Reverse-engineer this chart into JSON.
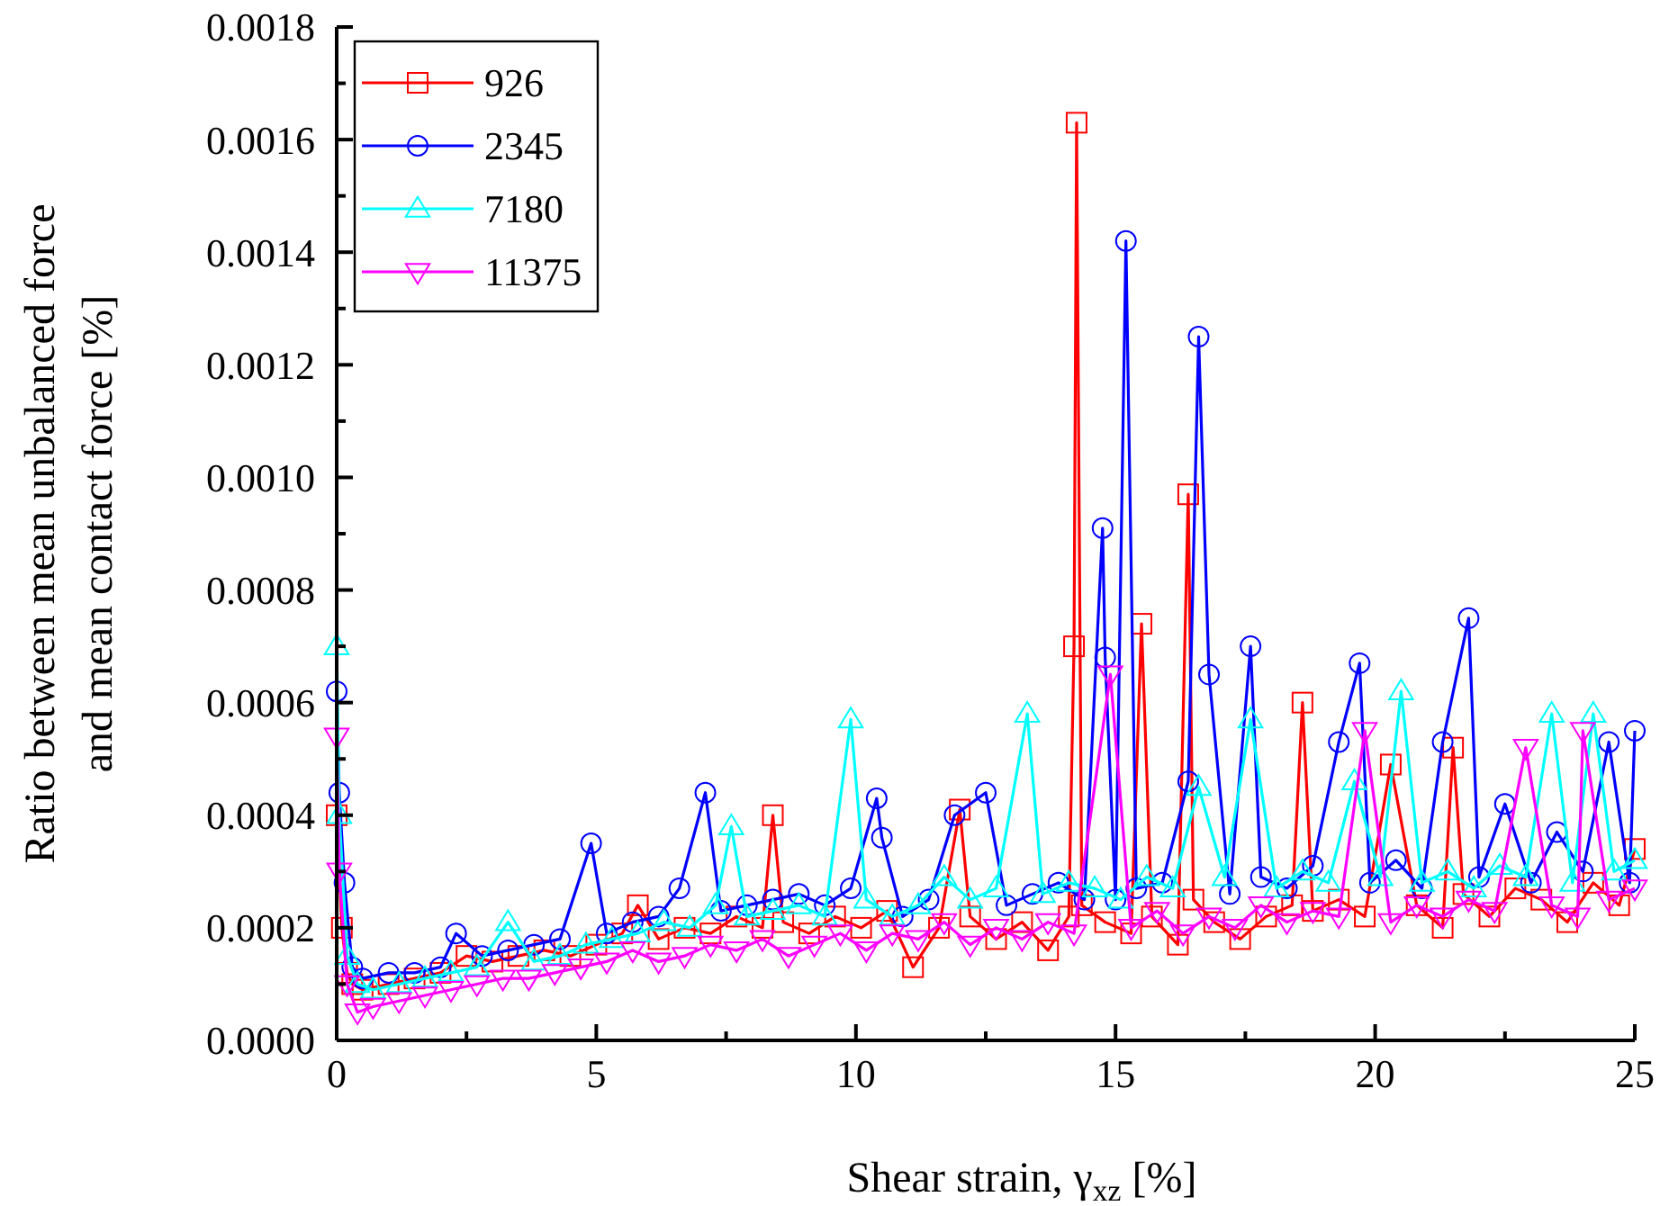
{
  "chart_data": {
    "type": "line",
    "xlabel": "Shear strain, γ$_{xz}$ [%]",
    "ylabel": "Ratio between mean unbalanced force\nand mean contact force [%]",
    "xlim": [
      0,
      25
    ],
    "ylim": [
      0,
      0.0018
    ],
    "xticks": [
      0,
      {
        "value": 2.5,
        "label": null
      },
      5,
      {
        "value": 7.5,
        "label": null
      },
      10,
      {
        "value": 12.5,
        "label": null
      },
      15,
      {
        "value": 17.5,
        "label": null
      },
      20,
      {
        "value": 22.5,
        "label": null
      },
      25
    ],
    "yticks": [
      {
        "value": 0,
        "label": "0.0000"
      },
      {
        "value": 0.0001,
        "label": null
      },
      {
        "value": 0.0002,
        "label": "0.0002"
      },
      {
        "value": 0.0003,
        "label": null
      },
      {
        "value": 0.0004,
        "label": "0.0004"
      },
      {
        "value": 0.0005,
        "label": null
      },
      {
        "value": 0.0006,
        "label": "0.0006"
      },
      {
        "value": 0.0007,
        "label": null
      },
      {
        "value": 0.0008,
        "label": "0.0008"
      },
      {
        "value": 0.0009,
        "label": null
      },
      {
        "value": 0.001,
        "label": "0.0010"
      },
      {
        "value": 0.0011,
        "label": null
      },
      {
        "value": 0.0012,
        "label": "0.0012"
      },
      {
        "value": 0.0013,
        "label": null
      },
      {
        "value": 0.0014,
        "label": "0.0014"
      },
      {
        "value": 0.0015,
        "label": null
      },
      {
        "value": 0.0016,
        "label": "0.0016"
      },
      {
        "value": 0.0017,
        "label": null
      },
      {
        "value": 0.0018,
        "label": "0.0018"
      }
    ],
    "grid": false,
    "legend": "top left",
    "line_style": "solid",
    "series": [
      {
        "name": "926",
        "color": "#ff0000",
        "marker": "square",
        "x": [
          0,
          0.1,
          0.2,
          0.3,
          0.5,
          1,
          1.5,
          2,
          2.5,
          3,
          3.5,
          4,
          4.5,
          5,
          5.5,
          5.8,
          6.2,
          6.7,
          7.2,
          7.7,
          8.2,
          8.4,
          8.6,
          9.1,
          9.6,
          10.1,
          10.6,
          11.1,
          11.6,
          12.0,
          12.2,
          12.7,
          13.2,
          13.7,
          14.1,
          14.2,
          14.25,
          14.35,
          14.8,
          15.3,
          15.5,
          15.7,
          16.2,
          16.4,
          16.5,
          16.9,
          17.4,
          17.9,
          18.4,
          18.6,
          18.8,
          19.3,
          19.8,
          20.3,
          20.8,
          21.3,
          21.5,
          21.7,
          22.2,
          22.7,
          23.2,
          23.7,
          24.2,
          24.7,
          25
        ],
        "values": [
          0.0004,
          0.0002,
          0.00012,
          0.0001,
          9e-05,
          0.0001,
          0.00011,
          0.00012,
          0.00015,
          0.00014,
          0.00015,
          0.00016,
          0.00015,
          0.00017,
          0.00019,
          0.00024,
          0.00018,
          0.0002,
          0.00019,
          0.00022,
          0.0002,
          0.0004,
          0.00021,
          0.00019,
          0.00022,
          0.0002,
          0.00023,
          0.00013,
          0.0002,
          0.00041,
          0.00022,
          0.00018,
          0.00021,
          0.00016,
          0.00022,
          0.0007,
          0.00163,
          0.00024,
          0.00021,
          0.00019,
          0.00074,
          0.00022,
          0.00017,
          0.00097,
          0.00025,
          0.00021,
          0.00018,
          0.00022,
          0.00024,
          0.0006,
          0.00023,
          0.00025,
          0.00022,
          0.00049,
          0.00024,
          0.0002,
          0.00052,
          0.00026,
          0.00022,
          0.00027,
          0.00025,
          0.00021,
          0.00028,
          0.00024,
          0.00034
        ]
      },
      {
        "name": "2345",
        "color": "#0000ff",
        "marker": "circle",
        "x": [
          0,
          0.05,
          0.15,
          0.3,
          0.5,
          1,
          1.5,
          2,
          2.3,
          2.8,
          3.3,
          3.8,
          4.3,
          4.9,
          5.2,
          5.7,
          6.2,
          6.6,
          7.1,
          7.4,
          7.9,
          8.4,
          8.9,
          9.4,
          9.9,
          10.4,
          10.5,
          10.9,
          11.4,
          11.9,
          12.5,
          12.9,
          13.4,
          13.9,
          14.4,
          14.75,
          14.8,
          15.0,
          15.2,
          15.4,
          15.9,
          16.4,
          16.6,
          16.8,
          17.2,
          17.6,
          17.8,
          18.3,
          18.8,
          19.3,
          19.7,
          19.9,
          20.4,
          20.9,
          21.3,
          21.8,
          22.0,
          22.5,
          23.0,
          23.5,
          24.0,
          24.5,
          24.9,
          25
        ],
        "values": [
          0.00062,
          0.00044,
          0.00028,
          0.00013,
          0.00011,
          0.00012,
          0.00012,
          0.00013,
          0.00019,
          0.00015,
          0.00016,
          0.00017,
          0.00018,
          0.00035,
          0.00019,
          0.00021,
          0.00022,
          0.00027,
          0.00044,
          0.00023,
          0.00024,
          0.00025,
          0.00026,
          0.00024,
          0.00027,
          0.00043,
          0.00036,
          0.00022,
          0.00025,
          0.0004,
          0.00044,
          0.00024,
          0.00026,
          0.00028,
          0.00025,
          0.00091,
          0.00068,
          0.00025,
          0.00142,
          0.00027,
          0.00028,
          0.00046,
          0.00125,
          0.00065,
          0.00026,
          0.0007,
          0.00029,
          0.00027,
          0.00031,
          0.00053,
          0.00067,
          0.00028,
          0.00032,
          0.00027,
          0.00053,
          0.00075,
          0.00029,
          0.00042,
          0.00028,
          0.00037,
          0.0003,
          0.00053,
          0.00028,
          0.00055
        ]
      },
      {
        "name": "7180",
        "color": "#00ffff",
        "marker": "triangle",
        "x": [
          0,
          0.05,
          0.2,
          0.4,
          0.7,
          1.2,
          1.7,
          2.2,
          2.7,
          3.3,
          3.8,
          4.3,
          4.8,
          5.3,
          5.8,
          6.3,
          6.8,
          7.3,
          7.6,
          7.9,
          8.4,
          8.9,
          9.4,
          9.9,
          10.2,
          10.7,
          11.2,
          11.7,
          12.2,
          12.7,
          13.3,
          13.6,
          14.1,
          14.6,
          15.1,
          15.6,
          16.1,
          16.6,
          17.1,
          17.6,
          18.1,
          18.6,
          19.1,
          19.6,
          20.1,
          20.5,
          20.9,
          21.4,
          21.9,
          22.4,
          22.9,
          23.4,
          23.8,
          24.2,
          24.6,
          25
        ],
        "values": [
          0.0007,
          0.0004,
          0.00015,
          0.0001,
          9e-05,
          0.0001,
          0.00011,
          0.00012,
          0.00013,
          0.00021,
          0.00014,
          0.00015,
          0.00017,
          0.00018,
          0.00019,
          0.00021,
          0.0002,
          0.00024,
          0.00038,
          0.00022,
          0.00023,
          0.00024,
          0.00022,
          0.00057,
          0.00025,
          0.00022,
          0.00024,
          0.00029,
          0.00025,
          0.00027,
          0.00058,
          0.00026,
          0.00028,
          0.00027,
          0.00025,
          0.00029,
          0.00027,
          0.00045,
          0.00029,
          0.00057,
          0.00027,
          0.0003,
          0.00028,
          0.00046,
          0.00029,
          0.00062,
          0.00028,
          0.0003,
          0.00027,
          0.00031,
          0.00029,
          0.00058,
          0.00028,
          0.00058,
          0.0003,
          0.00032
        ]
      },
      {
        "name": "11375",
        "color": "#ff00ff",
        "marker": "triangle-down",
        "x": [
          0,
          0.05,
          0.2,
          0.4,
          0.7,
          1.2,
          1.7,
          2.2,
          2.7,
          3.2,
          3.7,
          4.2,
          4.7,
          5.2,
          5.7,
          6.2,
          6.7,
          7.2,
          7.7,
          8.2,
          8.7,
          9.2,
          9.7,
          10.2,
          10.7,
          11.2,
          11.7,
          12.2,
          12.7,
          13.2,
          13.7,
          14.2,
          14.9,
          15.3,
          15.8,
          16.3,
          16.8,
          17.3,
          17.8,
          18.3,
          18.8,
          19.3,
          19.8,
          20.3,
          20.8,
          21.3,
          21.8,
          22.3,
          22.9,
          23.4,
          23.9,
          24.0,
          24.5,
          25
        ],
        "values": [
          0.00054,
          0.0003,
          0.0001,
          5e-05,
          6e-05,
          7e-05,
          8e-05,
          9e-05,
          0.0001,
          0.00011,
          0.00011,
          0.00012,
          0.00013,
          0.00014,
          0.00016,
          0.00014,
          0.00015,
          0.00017,
          0.00016,
          0.00018,
          0.00015,
          0.00017,
          0.00019,
          0.00016,
          0.00019,
          0.00018,
          0.00021,
          0.00017,
          0.0002,
          0.00018,
          0.00021,
          0.00019,
          0.00065,
          0.0002,
          0.00023,
          0.00019,
          0.00022,
          0.0002,
          0.00024,
          0.00021,
          0.00023,
          0.00022,
          0.00055,
          0.00021,
          0.00024,
          0.00022,
          0.00025,
          0.00023,
          0.00052,
          0.00024,
          0.00022,
          0.00055,
          0.00025,
          0.00027
        ]
      }
    ]
  }
}
